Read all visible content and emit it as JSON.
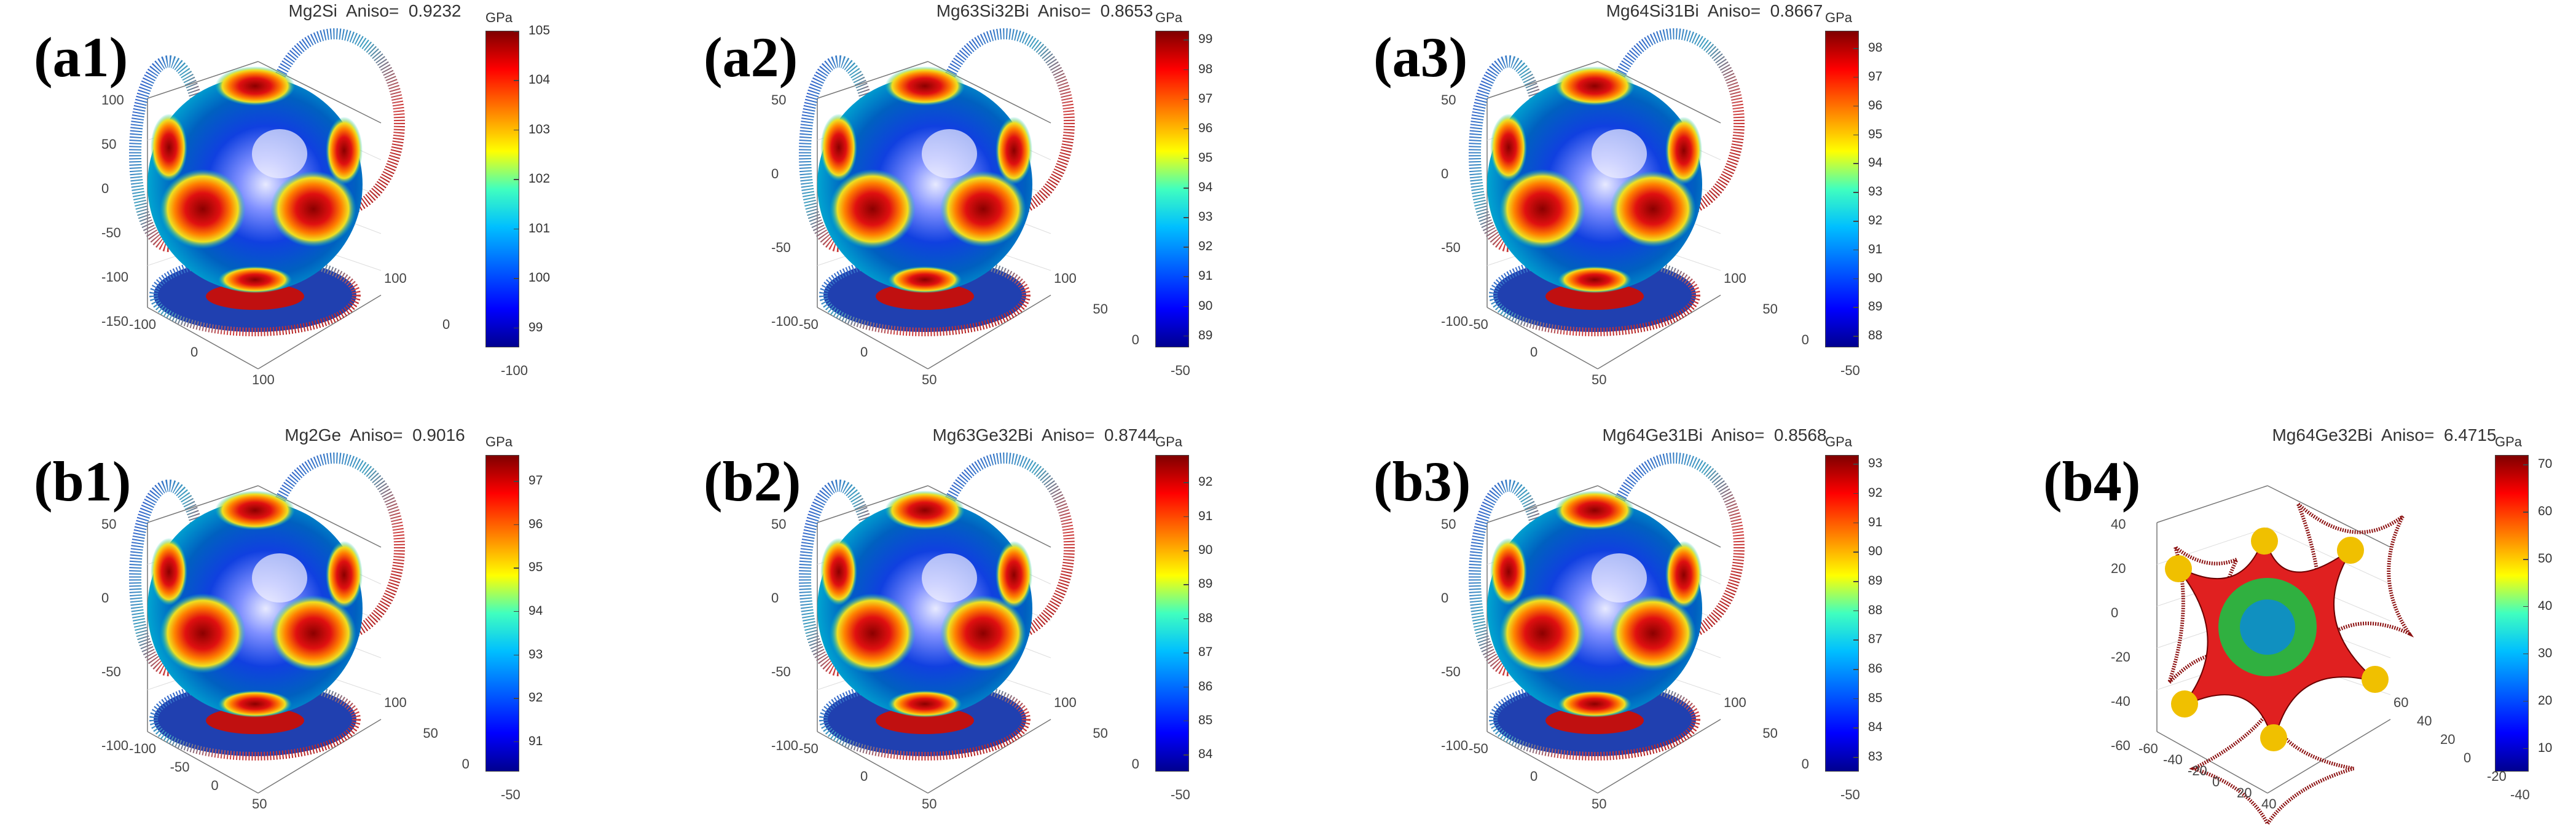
{
  "chart_data": [
    {
      "id": "a1",
      "type": "3d-surface",
      "panel_label": "(a1)",
      "title": "Mg2Si  Aniso=  0.9232",
      "colorbar_unit": "GPa",
      "clim": [
        98.6,
        105
      ],
      "colorbar_ticks": [
        "105",
        "104",
        "103",
        "102",
        "101",
        "100",
        "99"
      ],
      "z_ticks": [
        "100",
        "50",
        "0",
        "-50",
        "-100",
        "-150"
      ],
      "x_ticks": [
        "-100",
        "0",
        "100"
      ],
      "y_ticks": [
        "100",
        "0",
        "-100"
      ],
      "shape": "cubic-sphere"
    },
    {
      "id": "a2",
      "type": "3d-surface",
      "panel_label": "(a2)",
      "title": "Mg63Si32Bi  Aniso=  0.8653",
      "colorbar_unit": "GPa",
      "clim": [
        88.6,
        99.3
      ],
      "colorbar_ticks": [
        "99",
        "98",
        "97",
        "96",
        "95",
        "94",
        "93",
        "92",
        "91",
        "90",
        "89"
      ],
      "z_ticks": [
        "50",
        "0",
        "-50",
        "-100"
      ],
      "x_ticks": [
        "-50",
        "0",
        "50"
      ],
      "y_ticks": [
        "100",
        "50",
        "0",
        "-50"
      ],
      "shape": "cubic-sphere"
    },
    {
      "id": "a3",
      "type": "3d-surface",
      "panel_label": "(a3)",
      "title": "Mg64Si31Bi  Aniso=  0.8667",
      "colorbar_unit": "GPa",
      "clim": [
        87.6,
        98.6
      ],
      "colorbar_ticks": [
        "98",
        "97",
        "96",
        "95",
        "94",
        "93",
        "92",
        "91",
        "90",
        "89",
        "88"
      ],
      "z_ticks": [
        "50",
        "0",
        "-50",
        "-100"
      ],
      "x_ticks": [
        "-50",
        "0",
        "50"
      ],
      "y_ticks": [
        "100",
        "50",
        "0",
        "-50"
      ],
      "shape": "cubic-sphere"
    },
    {
      "id": "b1",
      "type": "3d-surface",
      "panel_label": "(b1)",
      "title": "Mg2Ge  Aniso=  0.9016",
      "colorbar_unit": "GPa",
      "clim": [
        90.3,
        97.6
      ],
      "colorbar_ticks": [
        "97",
        "96",
        "95",
        "94",
        "93",
        "92",
        "91"
      ],
      "z_ticks": [
        "50",
        "0",
        "-50",
        "-100"
      ],
      "x_ticks": [
        "-100",
        "-50",
        "0",
        "50"
      ],
      "y_ticks": [
        "100",
        "50",
        "0",
        "-50"
      ],
      "shape": "cubic-sphere"
    },
    {
      "id": "b2",
      "type": "3d-surface",
      "panel_label": "(b2)",
      "title": "Mg63Ge32Bi  Aniso=  0.8744",
      "colorbar_unit": "GPa",
      "clim": [
        83.5,
        92.8
      ],
      "colorbar_ticks": [
        "92",
        "91",
        "90",
        "89",
        "88",
        "87",
        "86",
        "85",
        "84"
      ],
      "z_ticks": [
        "50",
        "0",
        "-50",
        "-100"
      ],
      "x_ticks": [
        "-50",
        "0",
        "50"
      ],
      "y_ticks": [
        "100",
        "50",
        "0",
        "-50"
      ],
      "shape": "cubic-sphere"
    },
    {
      "id": "b3",
      "type": "3d-surface",
      "panel_label": "(b3)",
      "title": "Mg64Ge31Bi  Aniso=  0.8568",
      "colorbar_unit": "GPa",
      "clim": [
        82.5,
        93.3
      ],
      "colorbar_ticks": [
        "93",
        "92",
        "91",
        "90",
        "89",
        "88",
        "87",
        "86",
        "85",
        "84",
        "83"
      ],
      "z_ticks": [
        "50",
        "0",
        "-50",
        "-100"
      ],
      "x_ticks": [
        "-50",
        "0",
        "50"
      ],
      "y_ticks": [
        "100",
        "50",
        "0",
        "-50"
      ],
      "shape": "cubic-sphere"
    },
    {
      "id": "b4",
      "type": "3d-surface",
      "panel_label": "(b4)",
      "title": "Mg64Ge32Bi  Aniso=  6.4715",
      "colorbar_unit": "GPa",
      "clim": [
        5,
        72
      ],
      "colorbar_ticks": [
        "70",
        "60",
        "50",
        "40",
        "30",
        "20",
        "10"
      ],
      "z_ticks": [
        "40",
        "20",
        "0",
        "-20",
        "-40",
        "-60"
      ],
      "x_ticks": [
        "-60",
        "-40",
        "-20",
        "0",
        "20",
        "40"
      ],
      "y_ticks": [
        "60",
        "40",
        "20",
        "0",
        "-20",
        "-40"
      ],
      "shape": "star"
    }
  ],
  "colors": {
    "low": "#00008f",
    "mid_low": "#00bfff",
    "mid": "#ffff00",
    "mid_high": "#ff7f00",
    "high": "#7f0000"
  }
}
